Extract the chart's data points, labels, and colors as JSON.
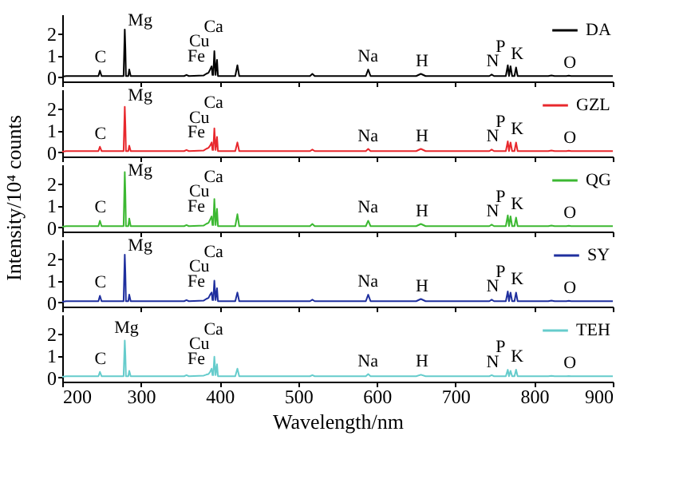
{
  "chart_data": [
    {
      "type": "line",
      "xlim": [
        200,
        900
      ],
      "ylim": [
        -0.2,
        2.9
      ],
      "xticks": [
        200,
        300,
        400,
        500,
        600,
        700,
        800,
        900
      ],
      "yticks": [
        0,
        1,
        2
      ],
      "tick_labels": "y",
      "legend": "top right",
      "grid": false,
      "x": [
        200,
        205,
        240,
        246,
        247.9,
        250,
        276,
        278,
        279.5,
        280.3,
        281,
        284,
        285.2,
        287,
        355,
        358,
        361,
        380,
        383,
        386,
        388,
        390,
        391,
        392,
        393.4,
        395,
        396.8,
        398,
        420,
        422.7,
        425,
        515,
        518,
        521,
        586,
        589,
        592,
        650,
        656,
        662,
        743,
        746,
        749,
        764,
        766.5,
        768,
        770,
        772,
        775,
        777,
        779,
        818,
        822,
        826,
        841,
        844,
        847,
        900
      ],
      "series": [
        {
          "name": "DA",
          "color": "#000000",
          "values": [
            0.02,
            0.05,
            0.05,
            0.05,
            0.3,
            0.05,
            0.05,
            0.05,
            2.2,
            1.3,
            0.05,
            0.05,
            0.35,
            0.05,
            0.05,
            0.1,
            0.05,
            0.08,
            0.15,
            0.2,
            0.35,
            0.5,
            0.1,
            0.1,
            1.2,
            0.1,
            0.8,
            0.05,
            0.05,
            0.55,
            0.05,
            0.05,
            0.15,
            0.05,
            0.05,
            0.35,
            0.05,
            0.05,
            0.15,
            0.05,
            0.05,
            0.12,
            0.05,
            0.05,
            0.55,
            0.05,
            0.5,
            0.05,
            0.05,
            0.45,
            0.05,
            0.05,
            0.08,
            0.05,
            0.05,
            0.07,
            0.05,
            0.05
          ]
        }
      ],
      "annotations": [
        {
          "text": "C",
          "x": 247.9,
          "y": 0.3
        },
        {
          "text": "Mg",
          "x": 279.5,
          "y": 2.2
        },
        {
          "text": "Fe",
          "x": 388,
          "y": 0.35
        },
        {
          "text": "Cu",
          "x": 390,
          "y": 0.5
        },
        {
          "text": "Ca",
          "x": 393.4,
          "y": 1.2
        },
        {
          "text": "Na",
          "x": 589,
          "y": 0.35
        },
        {
          "text": "H",
          "x": 656,
          "y": 0.15
        },
        {
          "text": "N",
          "x": 746,
          "y": 0.12
        },
        {
          "text": "P",
          "x": 766.5,
          "y": 0.55
        },
        {
          "text": "K",
          "x": 777,
          "y": 0.45
        },
        {
          "text": "O",
          "x": 844,
          "y": 0.07
        }
      ]
    },
    {
      "type": "line",
      "xlim": [
        200,
        900
      ],
      "ylim": [
        -0.2,
        2.9
      ],
      "xticks": [
        200,
        300,
        400,
        500,
        600,
        700,
        800,
        900
      ],
      "yticks": [
        0,
        1,
        2
      ],
      "tick_labels": "y",
      "legend": "top right",
      "grid": false,
      "x": [
        200,
        205,
        240,
        246,
        247.9,
        250,
        276,
        278,
        279.5,
        280.3,
        281,
        284,
        285.2,
        287,
        355,
        358,
        361,
        380,
        383,
        386,
        388,
        390,
        391,
        392,
        393.4,
        395,
        396.8,
        398,
        420,
        422.7,
        425,
        515,
        518,
        521,
        586,
        589,
        592,
        650,
        656,
        662,
        743,
        746,
        749,
        764,
        766.5,
        768,
        770,
        772,
        775,
        777,
        779,
        818,
        822,
        826,
        841,
        844,
        847,
        900
      ],
      "series": [
        {
          "name": "GZL",
          "color": "#e8282d",
          "values": [
            0.02,
            0.05,
            0.05,
            0.05,
            0.25,
            0.05,
            0.05,
            0.05,
            2.1,
            1.2,
            0.05,
            0.05,
            0.3,
            0.05,
            0.05,
            0.1,
            0.05,
            0.08,
            0.15,
            0.2,
            0.3,
            0.45,
            0.1,
            0.1,
            1.1,
            0.1,
            0.7,
            0.05,
            0.05,
            0.45,
            0.05,
            0.05,
            0.12,
            0.05,
            0.05,
            0.15,
            0.05,
            0.05,
            0.15,
            0.05,
            0.05,
            0.12,
            0.05,
            0.05,
            0.5,
            0.05,
            0.45,
            0.05,
            0.05,
            0.45,
            0.05,
            0.05,
            0.08,
            0.05,
            0.05,
            0.07,
            0.05,
            0.05
          ]
        }
      ],
      "annotations": [
        {
          "text": "C",
          "x": 247.9,
          "y": 0.25
        },
        {
          "text": "Mg",
          "x": 279.5,
          "y": 2.1
        },
        {
          "text": "Fe",
          "x": 388,
          "y": 0.3
        },
        {
          "text": "Cu",
          "x": 390,
          "y": 0.45
        },
        {
          "text": "Ca",
          "x": 393.4,
          "y": 1.1
        },
        {
          "text": "Na",
          "x": 589,
          "y": 0.15
        },
        {
          "text": "H",
          "x": 656,
          "y": 0.15
        },
        {
          "text": "N",
          "x": 746,
          "y": 0.12
        },
        {
          "text": "P",
          "x": 766.5,
          "y": 0.5
        },
        {
          "text": "K",
          "x": 777,
          "y": 0.45
        },
        {
          "text": "O",
          "x": 844,
          "y": 0.07
        }
      ]
    },
    {
      "type": "line",
      "xlim": [
        200,
        900
      ],
      "ylim": [
        -0.2,
        2.9
      ],
      "xticks": [
        200,
        300,
        400,
        500,
        600,
        700,
        800,
        900
      ],
      "yticks": [
        0,
        1,
        2
      ],
      "tick_labels": "y",
      "legend": "top right",
      "grid": false,
      "ylabel": "Intensity/10⁴ counts",
      "x": [
        200,
        205,
        240,
        246,
        247.9,
        250,
        276,
        278,
        279.5,
        280.3,
        281,
        284,
        285.2,
        287,
        355,
        358,
        361,
        380,
        383,
        386,
        388,
        390,
        391,
        392,
        393.4,
        395,
        396.8,
        398,
        420,
        422.7,
        425,
        515,
        518,
        521,
        586,
        589,
        592,
        650,
        656,
        662,
        743,
        746,
        749,
        764,
        766.5,
        768,
        770,
        772,
        775,
        777,
        779,
        818,
        822,
        826,
        841,
        844,
        847,
        900
      ],
      "series": [
        {
          "name": "QG",
          "color": "#3cb832",
          "values": [
            0.02,
            0.05,
            0.05,
            0.05,
            0.3,
            0.05,
            0.05,
            0.05,
            2.55,
            1.5,
            0.05,
            0.05,
            0.4,
            0.05,
            0.05,
            0.1,
            0.05,
            0.08,
            0.15,
            0.2,
            0.35,
            0.5,
            0.1,
            0.1,
            1.3,
            0.1,
            0.85,
            0.05,
            0.05,
            0.6,
            0.05,
            0.05,
            0.15,
            0.05,
            0.05,
            0.3,
            0.05,
            0.05,
            0.15,
            0.05,
            0.05,
            0.12,
            0.05,
            0.05,
            0.55,
            0.05,
            0.5,
            0.05,
            0.05,
            0.45,
            0.05,
            0.05,
            0.08,
            0.05,
            0.05,
            0.07,
            0.05,
            0.05
          ]
        }
      ],
      "annotations": [
        {
          "text": "C",
          "x": 247.9,
          "y": 0.3
        },
        {
          "text": "Mg",
          "x": 279.5,
          "y": 2.55
        },
        {
          "text": "Fe",
          "x": 388,
          "y": 0.35
        },
        {
          "text": "Cu",
          "x": 390,
          "y": 0.5
        },
        {
          "text": "Ca",
          "x": 393.4,
          "y": 1.3
        },
        {
          "text": "Na",
          "x": 589,
          "y": 0.3
        },
        {
          "text": "H",
          "x": 656,
          "y": 0.15
        },
        {
          "text": "N",
          "x": 746,
          "y": 0.12
        },
        {
          "text": "P",
          "x": 766.5,
          "y": 0.55
        },
        {
          "text": "K",
          "x": 777,
          "y": 0.45
        },
        {
          "text": "O",
          "x": 844,
          "y": 0.07
        }
      ]
    },
    {
      "type": "line",
      "xlim": [
        200,
        900
      ],
      "ylim": [
        -0.2,
        2.9
      ],
      "xticks": [
        200,
        300,
        400,
        500,
        600,
        700,
        800,
        900
      ],
      "yticks": [
        0,
        1,
        2
      ],
      "tick_labels": "y",
      "legend": "top right",
      "grid": false,
      "x": [
        200,
        205,
        240,
        246,
        247.9,
        250,
        276,
        278,
        279.5,
        280.3,
        281,
        284,
        285.2,
        287,
        355,
        358,
        361,
        380,
        383,
        386,
        388,
        390,
        391,
        392,
        393.4,
        395,
        396.8,
        398,
        420,
        422.7,
        425,
        515,
        518,
        521,
        586,
        589,
        592,
        650,
        656,
        662,
        743,
        746,
        749,
        764,
        766.5,
        768,
        770,
        772,
        775,
        777,
        779,
        818,
        822,
        826,
        841,
        844,
        847,
        900
      ],
      "series": [
        {
          "name": "SY",
          "color": "#1f2f9e",
          "values": [
            0.02,
            0.05,
            0.05,
            0.05,
            0.3,
            0.05,
            0.05,
            0.05,
            2.2,
            1.3,
            0.05,
            0.05,
            0.35,
            0.05,
            0.05,
            0.1,
            0.05,
            0.08,
            0.15,
            0.2,
            0.35,
            0.45,
            0.1,
            0.1,
            1.0,
            0.1,
            0.65,
            0.05,
            0.05,
            0.45,
            0.05,
            0.05,
            0.12,
            0.05,
            0.05,
            0.35,
            0.05,
            0.05,
            0.15,
            0.05,
            0.05,
            0.12,
            0.05,
            0.05,
            0.5,
            0.05,
            0.45,
            0.05,
            0.05,
            0.45,
            0.05,
            0.05,
            0.08,
            0.05,
            0.05,
            0.07,
            0.05,
            0.05
          ]
        }
      ],
      "annotations": [
        {
          "text": "C",
          "x": 247.9,
          "y": 0.3
        },
        {
          "text": "Mg",
          "x": 279.5,
          "y": 2.2
        },
        {
          "text": "Fe",
          "x": 388,
          "y": 0.35
        },
        {
          "text": "Cu",
          "x": 390,
          "y": 0.45
        },
        {
          "text": "Ca",
          "x": 393.4,
          "y": 1.0
        },
        {
          "text": "Na",
          "x": 589,
          "y": 0.35
        },
        {
          "text": "H",
          "x": 656,
          "y": 0.15
        },
        {
          "text": "N",
          "x": 746,
          "y": 0.12
        },
        {
          "text": "P",
          "x": 766.5,
          "y": 0.5
        },
        {
          "text": "K",
          "x": 777,
          "y": 0.45
        },
        {
          "text": "O",
          "x": 844,
          "y": 0.07
        }
      ]
    },
    {
      "type": "line",
      "xlim": [
        200,
        900
      ],
      "ylim": [
        -0.2,
        2.9
      ],
      "xticks": [
        200,
        300,
        400,
        500,
        600,
        700,
        800,
        900
      ],
      "yticks": [
        0,
        1,
        2
      ],
      "legend": "top right",
      "grid": false,
      "xlabel": "Wavelength/nm",
      "x": [
        200,
        205,
        240,
        246,
        247.9,
        250,
        276,
        278,
        279.5,
        280.3,
        281,
        284,
        285.2,
        287,
        355,
        358,
        361,
        380,
        383,
        386,
        388,
        390,
        391,
        392,
        393.4,
        395,
        396.8,
        398,
        420,
        422.7,
        425,
        515,
        518,
        521,
        586,
        589,
        592,
        650,
        656,
        662,
        743,
        746,
        749,
        764,
        766.5,
        768,
        770,
        772,
        775,
        777,
        779,
        818,
        822,
        826,
        841,
        844,
        847,
        900
      ],
      "series": [
        {
          "name": "TEH",
          "color": "#66cccc",
          "values": [
            0.02,
            0.05,
            0.05,
            0.05,
            0.25,
            0.05,
            0.05,
            0.05,
            1.7,
            1.0,
            0.05,
            0.05,
            0.3,
            0.05,
            0.05,
            0.1,
            0.05,
            0.08,
            0.12,
            0.15,
            0.25,
            0.4,
            0.1,
            0.1,
            0.95,
            0.1,
            0.6,
            0.05,
            0.05,
            0.4,
            0.05,
            0.05,
            0.1,
            0.05,
            0.05,
            0.15,
            0.05,
            0.05,
            0.12,
            0.05,
            0.05,
            0.1,
            0.05,
            0.05,
            0.35,
            0.05,
            0.3,
            0.05,
            0.05,
            0.35,
            0.05,
            0.05,
            0.07,
            0.05,
            0.05,
            0.06,
            0.05,
            0.05
          ]
        }
      ],
      "annotations": [
        {
          "text": "C",
          "x": 247.9,
          "y": 0.25
        },
        {
          "text": "Mg",
          "x": 279.5,
          "y": 1.7
        },
        {
          "text": "Fe",
          "x": 388,
          "y": 0.25
        },
        {
          "text": "Cu",
          "x": 390,
          "y": 0.4
        },
        {
          "text": "Ca",
          "x": 393.4,
          "y": 0.95
        },
        {
          "text": "Na",
          "x": 589,
          "y": 0.15
        },
        {
          "text": "H",
          "x": 656,
          "y": 0.12
        },
        {
          "text": "N",
          "x": 746,
          "y": 0.1
        },
        {
          "text": "P",
          "x": 766.5,
          "y": 0.35
        },
        {
          "text": "K",
          "x": 777,
          "y": 0.35
        },
        {
          "text": "O",
          "x": 844,
          "y": 0.06
        }
      ]
    }
  ]
}
